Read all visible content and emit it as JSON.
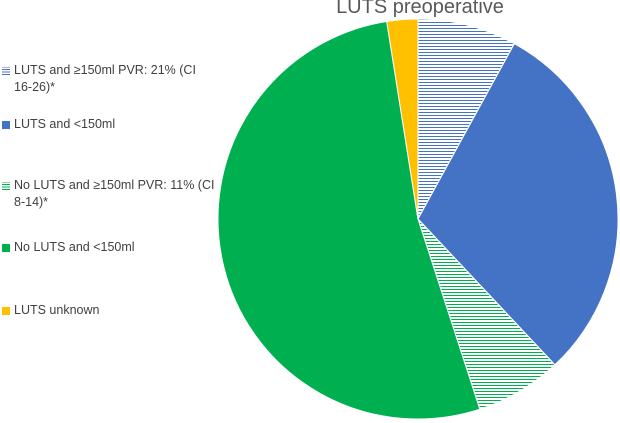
{
  "chart_data": {
    "type": "pie",
    "title": "LUTS preoperative",
    "legend_placement": "left",
    "slices": [
      {
        "label": "LUTS and ≥150ml PVR: 21% (CI 16-26)*",
        "value": 8.0,
        "color": "#4472C4",
        "pattern": "hatch"
      },
      {
        "label": "LUTS and <150ml",
        "value": 30.0,
        "color": "#4472C4",
        "pattern": "solid"
      },
      {
        "label": "No LUTS and ≥150ml PVR: 11% (CI 8-14)*",
        "value": 7.0,
        "color": "#00B050",
        "pattern": "hatch"
      },
      {
        "label": "No LUTS and <150ml",
        "value": 52.5,
        "color": "#00B050",
        "pattern": "solid"
      },
      {
        "label": "LUTS unknown",
        "value": 2.5,
        "color": "#FFC000",
        "pattern": "solid"
      }
    ]
  }
}
